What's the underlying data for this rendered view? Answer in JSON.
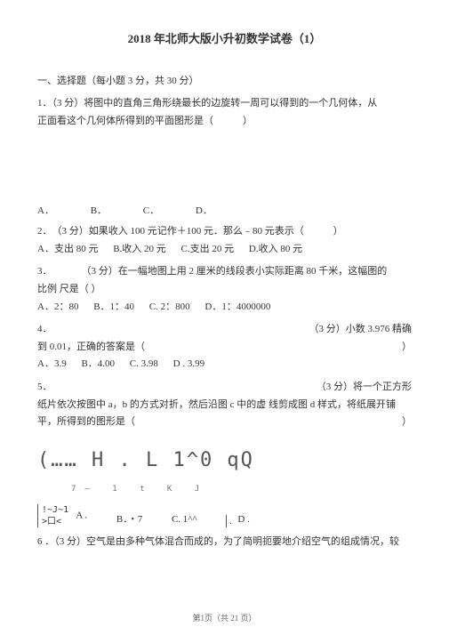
{
  "title": "2018 年北师大版小升初数学试卷（1）",
  "section1": "一、选择题（每小题 3 分，共 30 分）",
  "q1": {
    "line1": "1．（3 分）将图中的直角三角形绕最长的边旋转一周可以得到的一个几何体，从",
    "line2": "正面看这个几何体所得到的平面图形是（　　　）",
    "optA": "A．",
    "optB": "B．",
    "optC": "C．",
    "optD": "D．"
  },
  "q2": {
    "line1": "2．　（3 分）如果收入 100 元记作＋100 元．那么﹣80 元表示（　　　）",
    "optA": "A．支出 80 元",
    "optB": "B.收入 20 元",
    "optC": "C.支出 20 元",
    "optD": "D.收入 80 元"
  },
  "q3": {
    "line1": "3．　　　　（3 分）在一幅地图上用 2 厘米的线段表小实际距离 80 千米，这幅图的",
    "line2": "比例  尺是（ ）",
    "optA": "A．2：80",
    "optB": "B．1：40",
    "optC": "C. 2：800",
    "optD": "D．1：4000000"
  },
  "q4": {
    "line1a": "4．",
    "line1b": "（3 分）小数 3.976 精确",
    "line2": "到 0.01，正确的答案是（",
    "line2end": "）",
    "optA": "A．3.9",
    "optB": "B．4.00",
    "optC": "C. 3.98",
    "optD": "D . 3.99"
  },
  "q5": {
    "line1a": "5．",
    "line1b": "（3 分）将一个正方形",
    "line2": "纸片依次按图中  a，b 的方式对折，然后沿图 c 中的虚  线剪成图 d 样式，将纸展开铺",
    "line3": "平，所得到的图形是（",
    "line3end": "）",
    "art": "(…… H . L 1^0 qQ",
    "artSub": "7—     1        t         K           J",
    "bracket1": "!~J~1",
    "bracket2": ">口<",
    "optA": "A .",
    "optB": "B．・7",
    "optC": "C. 1^^",
    "optD": "D .",
    "dTiny": "."
  },
  "q6": {
    "line1": "6 ．（3 分）空气是由多种气体混合而成的，为了简明扼要地介绍空气的组成情况，较"
  },
  "footer": "第1页（共 21 页）"
}
